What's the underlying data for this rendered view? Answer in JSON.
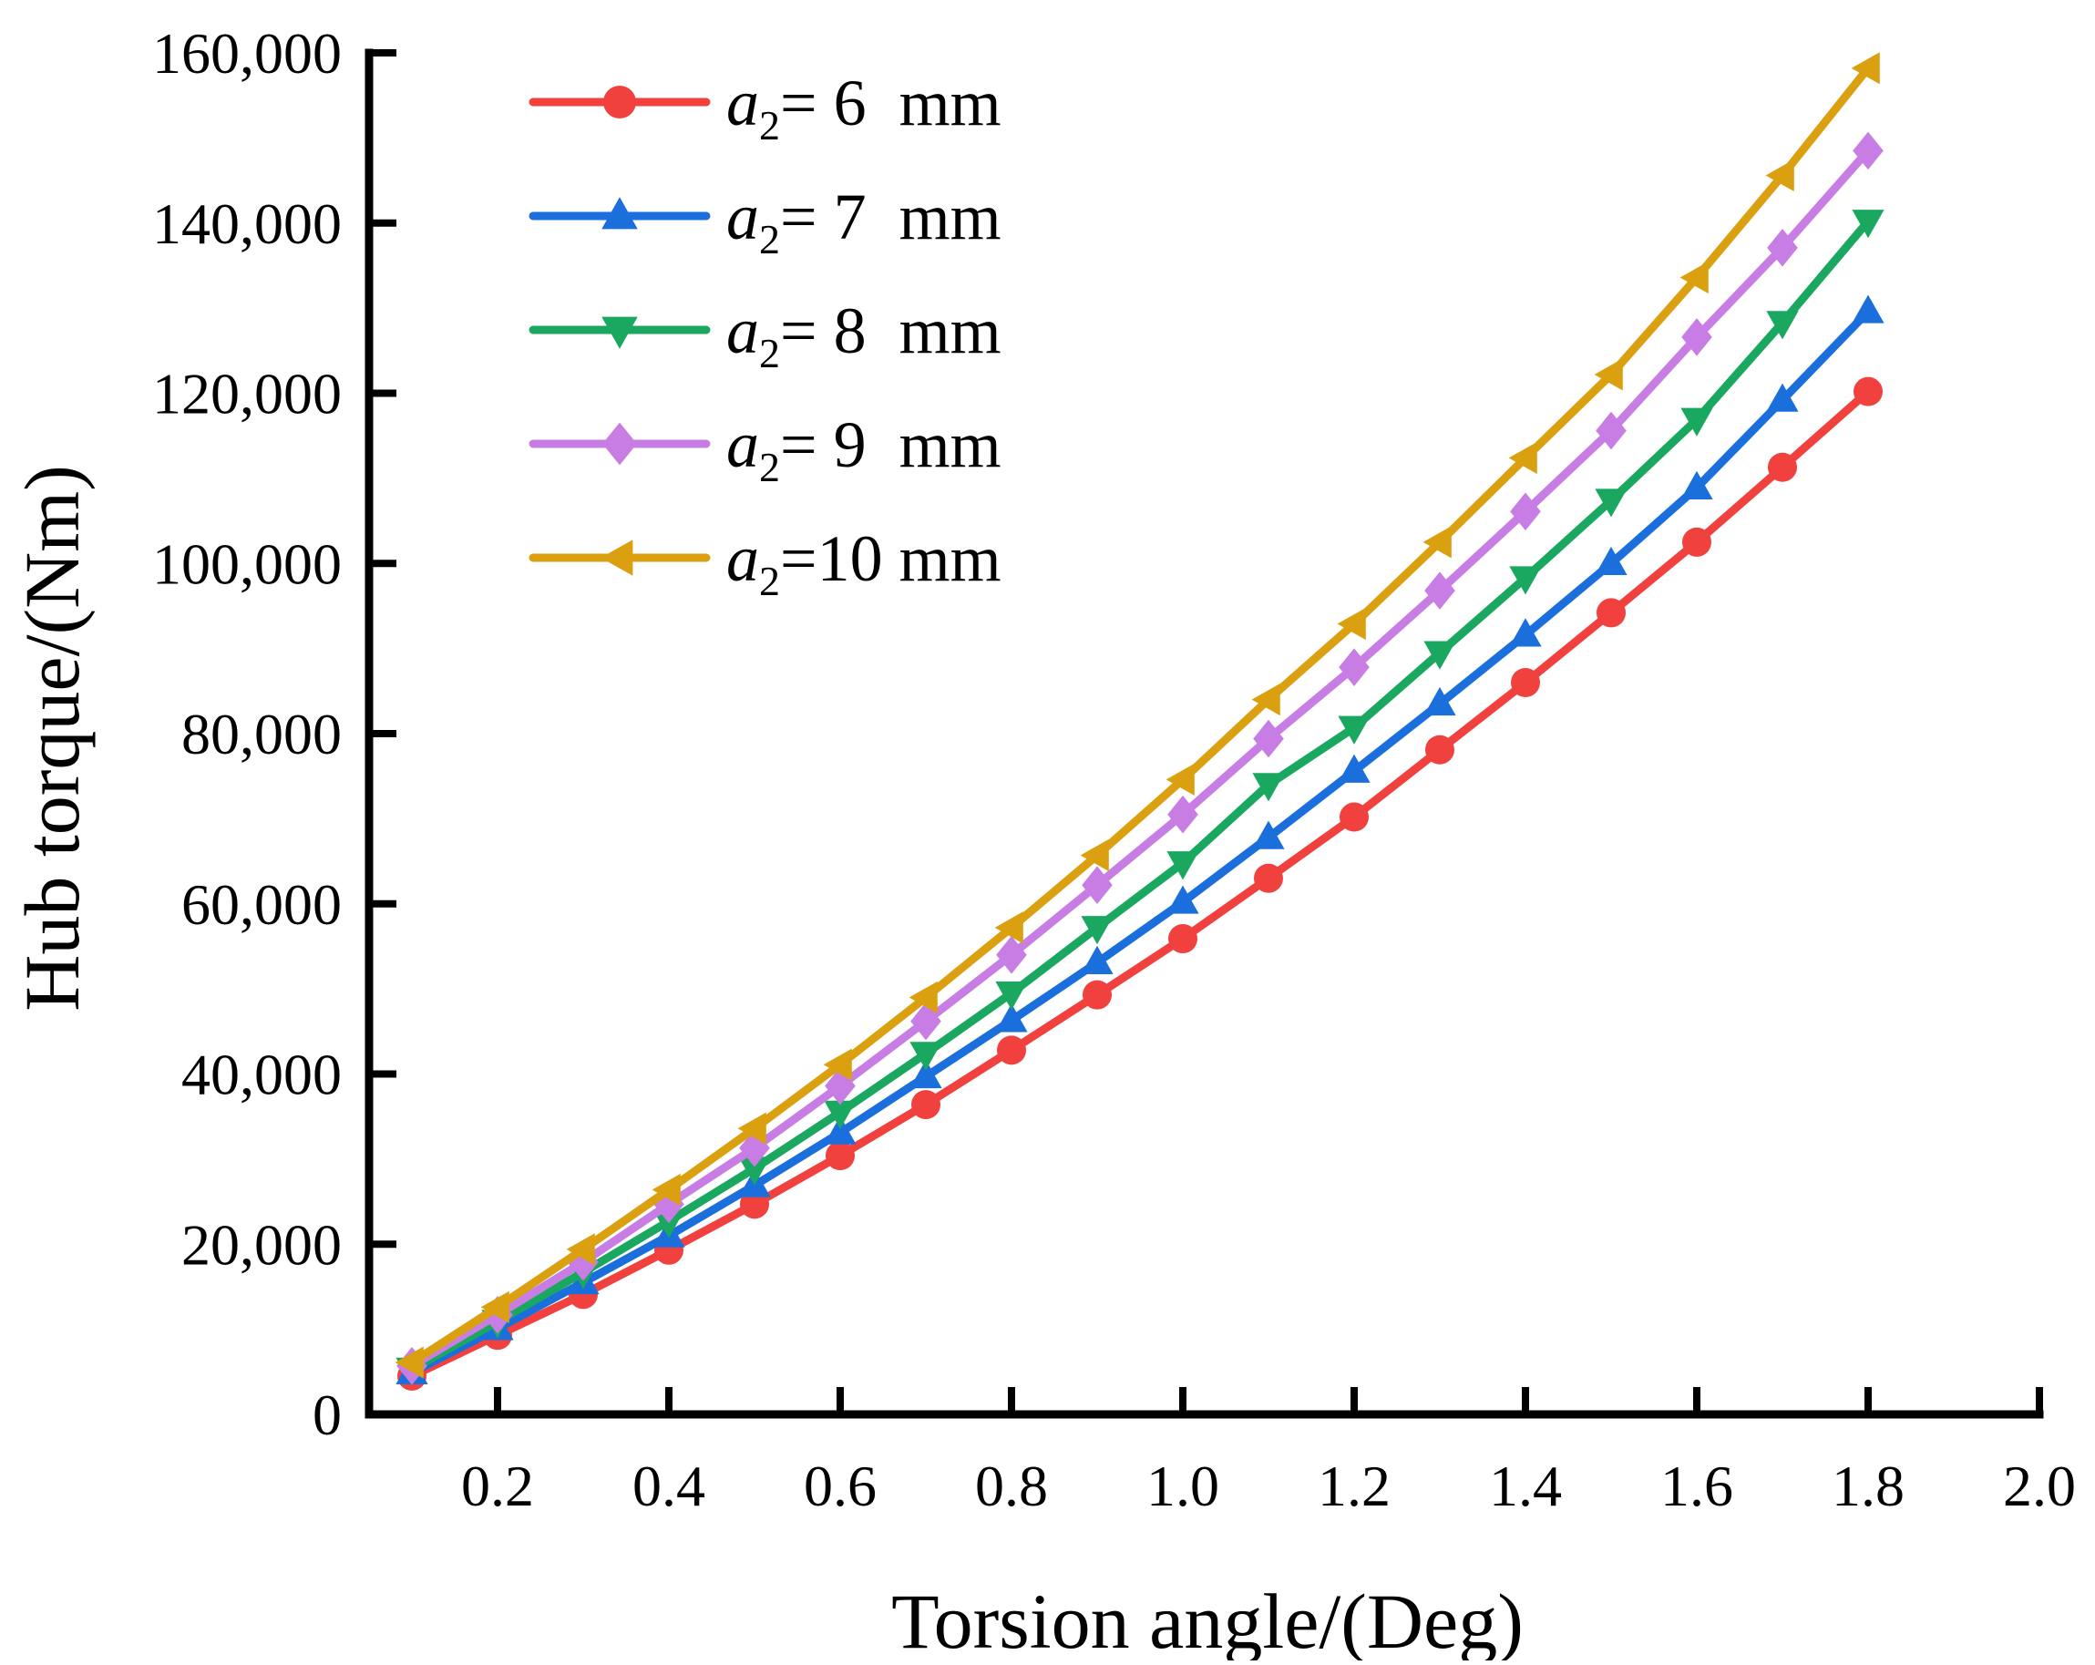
{
  "chart_data": {
    "type": "line",
    "xlabel": "Torsion angle/(Deg)",
    "ylabel": "Hub torque/(Nm)",
    "xlim": [
      0.05,
      2.0
    ],
    "ylim": [
      0,
      160000
    ],
    "xticks": [
      "0.2",
      "0.4",
      "0.6",
      "0.8",
      "1.0",
      "1.2",
      "1.4",
      "1.6",
      "1.8",
      "2.0"
    ],
    "yticks": [
      "0",
      "20,000",
      "40,000",
      "60,000",
      "80,000",
      "100,000",
      "120,000",
      "140,000",
      "160,000"
    ],
    "grid": false,
    "legend_position": "top-left",
    "x": [
      0.1,
      0.2,
      0.3,
      0.4,
      0.5,
      0.6,
      0.7,
      0.8,
      0.9,
      1.0,
      1.1,
      1.2,
      1.3,
      1.4,
      1.5,
      1.6,
      1.7,
      1.8
    ],
    "series": [
      {
        "legend_var": "a",
        "legend_sub": "2",
        "legend_rest": "= 6  mm",
        "color": "#f0413f",
        "marker": "circle",
        "values": [
          4500,
          9300,
          14100,
          19300,
          24700,
          30400,
          36400,
          42800,
          49300,
          55900,
          63000,
          70200,
          78100,
          86000,
          94200,
          102500,
          111300,
          120200
        ]
      },
      {
        "legend_var": "a",
        "legend_sub": "2",
        "legend_rest": "= 7  mm",
        "color": "#1a6fdc",
        "marker": "triangle-up",
        "values": [
          4900,
          10100,
          15500,
          21000,
          26900,
          33100,
          39700,
          46300,
          53100,
          60200,
          67800,
          75600,
          83500,
          91600,
          100000,
          108900,
          119200,
          129600
        ]
      },
      {
        "legend_var": "a",
        "legend_sub": "2",
        "legend_rest": "= 8  mm",
        "color": "#1aa860",
        "marker": "triangle-down",
        "values": [
          5300,
          10900,
          16700,
          22700,
          28900,
          35500,
          42400,
          49500,
          57200,
          64800,
          74000,
          80700,
          89500,
          98300,
          107400,
          116900,
          128300,
          140200
        ]
      },
      {
        "legend_var": "a",
        "legend_sub": "2",
        "legend_rest": "= 9  mm",
        "color": "#c77de4",
        "marker": "diamond",
        "values": [
          5700,
          11700,
          17900,
          24700,
          31300,
          38600,
          46200,
          54000,
          62200,
          70500,
          79400,
          87800,
          96800,
          106100,
          115600,
          126600,
          137100,
          148500
        ]
      },
      {
        "legend_var": "a",
        "legend_sub": "2",
        "legend_rest": "=10 mm",
        "color": "#dba010",
        "marker": "triangle-left",
        "values": [
          6100,
          12600,
          19400,
          26400,
          33600,
          41100,
          49000,
          57200,
          65700,
          74600,
          84000,
          92900,
          102500,
          112400,
          122200,
          133600,
          145600,
          158200
        ]
      }
    ]
  }
}
